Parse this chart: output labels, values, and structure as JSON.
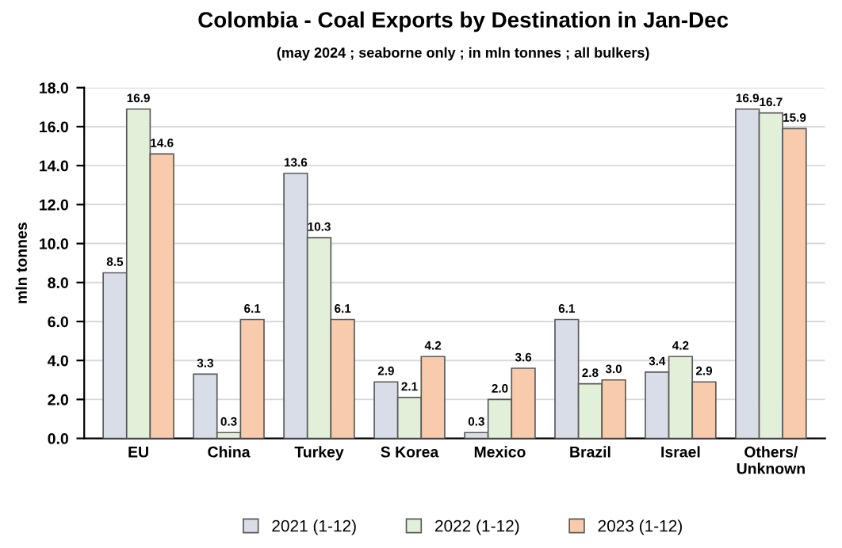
{
  "chart_data": {
    "type": "bar",
    "title": "Colombia - Coal Exports by Destination in Jan-Dec",
    "subtitle": "(may 2024 ; seaborne only ; in mln tonnes ; all bulkers)",
    "ylabel": "mln tonnes",
    "categories": [
      "EU",
      "China",
      "Turkey",
      "S Korea",
      "Mexico",
      "Brazil",
      "Israel",
      "Others/\nUnknown"
    ],
    "series": [
      {
        "name": "2021 (1-12)",
        "color": "#d9dde8",
        "values": [
          8.5,
          3.3,
          13.6,
          2.9,
          0.3,
          6.1,
          3.4,
          16.9
        ],
        "value_labels": [
          "8.5",
          "3.3",
          "13.6",
          "2.9",
          "0.3",
          "6.1",
          "3.4",
          "16.9"
        ]
      },
      {
        "name": "2022 (1-12)",
        "color": "#e2f0d9",
        "values": [
          16.9,
          0.3,
          10.3,
          2.1,
          2.0,
          2.8,
          4.2,
          16.7
        ],
        "value_labels": [
          "16.9",
          "0.3",
          "10.3",
          "2.1",
          "2.0",
          "2.8",
          "4.2",
          "16.7"
        ]
      },
      {
        "name": "2023 (1-12)",
        "color": "#f8cbad",
        "values": [
          14.6,
          6.1,
          6.1,
          4.2,
          3.6,
          3.0,
          2.9,
          15.9
        ],
        "value_labels": [
          "14.6",
          "6.1",
          "6.1",
          "4.2",
          "3.6",
          "3.0",
          "2.9",
          "15.9"
        ]
      }
    ],
    "ylim": [
      0,
      18
    ],
    "yticks": [
      {
        "value": 0,
        "label": "0.0"
      },
      {
        "value": 2,
        "label": "2.0"
      },
      {
        "value": 4,
        "label": "4.0"
      },
      {
        "value": 6,
        "label": "6.0"
      },
      {
        "value": 8,
        "label": "8.0"
      },
      {
        "value": 10,
        "label": "10.0"
      },
      {
        "value": 12,
        "label": "12.0"
      },
      {
        "value": 14,
        "label": "14.0"
      },
      {
        "value": 16,
        "label": "16.0"
      },
      {
        "value": 18,
        "label": "18.0"
      }
    ],
    "grid": "y",
    "legend": "bottom"
  }
}
